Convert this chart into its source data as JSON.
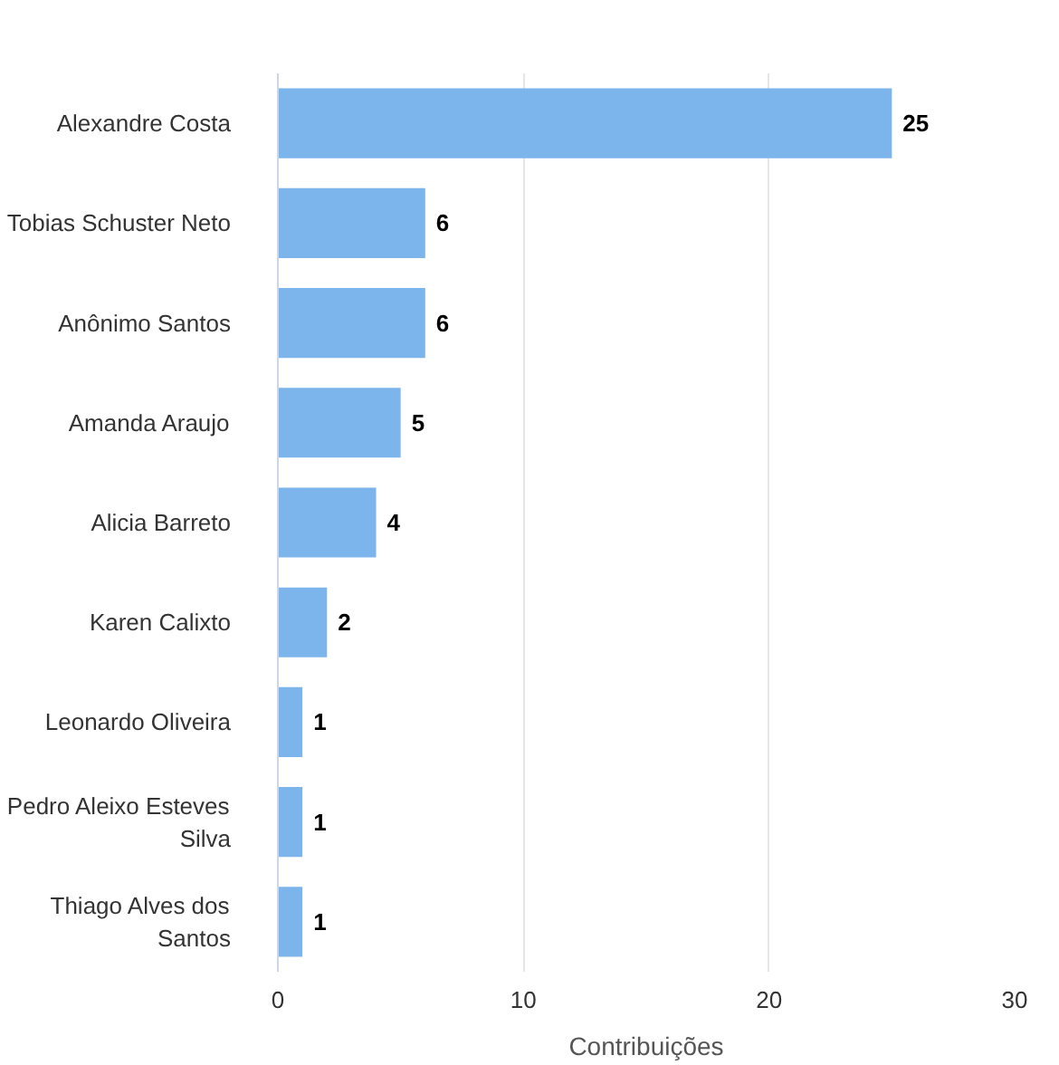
{
  "chart_data": {
    "type": "bar",
    "orientation": "horizontal",
    "xlabel": "Contribuições",
    "categories": [
      "Alexandre Costa",
      "Tobias Schuster Neto",
      "Anônimo Santos",
      "Amanda Araujo",
      "Alicia Barreto",
      "Karen Calixto",
      "Leonardo Oliveira",
      "Pedro Aleixo Esteves Silva",
      "Thiago Alves dos Santos"
    ],
    "values": [
      25,
      6,
      6,
      5,
      4,
      2,
      1,
      1,
      1
    ],
    "color": "#7cb5ec",
    "xlim": [
      0,
      30
    ],
    "xticks": [
      0,
      10,
      20,
      30
    ],
    "grid": "x",
    "data_labels": true
  }
}
